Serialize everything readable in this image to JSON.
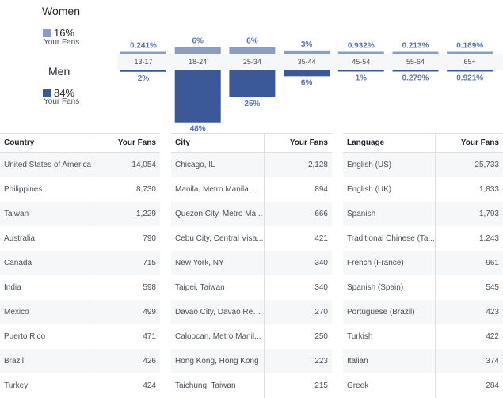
{
  "demographics": {
    "women": {
      "title": "Women",
      "pct": "16%",
      "sub": "Your Fans",
      "color": "#8b9dc3"
    },
    "men": {
      "title": "Men",
      "pct": "84%",
      "sub": "Your Fans",
      "color": "#3b5998"
    }
  },
  "chart_data": {
    "type": "bar",
    "categories": [
      "13-17",
      "18-24",
      "25-34",
      "35-44",
      "45-54",
      "55-64",
      "65+"
    ],
    "series": [
      {
        "name": "Women",
        "values": [
          0.241,
          6,
          6,
          3,
          0.932,
          0.213,
          0.189
        ],
        "labels": [
          "0.241%",
          "6%",
          "6%",
          "3%",
          "0.932%",
          "0.213%",
          "0.189%"
        ],
        "color": "#8b9dc3"
      },
      {
        "name": "Men",
        "values": [
          2,
          48,
          25,
          6,
          1,
          0.279,
          0.921
        ],
        "labels": [
          "2%",
          "48%",
          "25%",
          "6%",
          "1%",
          "0.279%",
          "0.921%"
        ],
        "color": "#3b5998"
      }
    ]
  },
  "tables": [
    {
      "header": [
        "Country",
        "Your Fans"
      ],
      "rows": [
        [
          "United States of America",
          "14,054"
        ],
        [
          "Philippines",
          "8,730"
        ],
        [
          "Taiwan",
          "1,229"
        ],
        [
          "Australia",
          "790"
        ],
        [
          "Canada",
          "715"
        ],
        [
          "India",
          "598"
        ],
        [
          "Mexico",
          "499"
        ],
        [
          "Puerto Rico",
          "471"
        ],
        [
          "Brazil",
          "426"
        ],
        [
          "Turkey",
          "424"
        ]
      ]
    },
    {
      "header": [
        "City",
        "Your Fans"
      ],
      "rows": [
        [
          "Chicago, IL",
          "2,128"
        ],
        [
          "Manila, Metro Manila, ...",
          "894"
        ],
        [
          "Quezon City, Metro Ma...",
          "666"
        ],
        [
          "Cebu City, Central Visa...",
          "421"
        ],
        [
          "New York, NY",
          "340"
        ],
        [
          "Taipei, Taiwan",
          "340"
        ],
        [
          "Davao City, Davao Reg...",
          "270"
        ],
        [
          "Caloocan, Metro Manil...",
          "250"
        ],
        [
          "Hong Kong, Hong Kong",
          "223"
        ],
        [
          "Taichung, Taiwan",
          "215"
        ]
      ]
    },
    {
      "header": [
        "Language",
        "Your Fans"
      ],
      "rows": [
        [
          "English (US)",
          "25,733"
        ],
        [
          "English (UK)",
          "1,833"
        ],
        [
          "Spanish",
          "1,793"
        ],
        [
          "Traditional Chinese (Ta...",
          "1,243"
        ],
        [
          "French (France)",
          "961"
        ],
        [
          "Spanish (Spain)",
          "545"
        ],
        [
          "Portuguese (Brazil)",
          "423"
        ],
        [
          "Turkish",
          "422"
        ],
        [
          "Italian",
          "374"
        ],
        [
          "Greek",
          "284"
        ]
      ]
    }
  ]
}
